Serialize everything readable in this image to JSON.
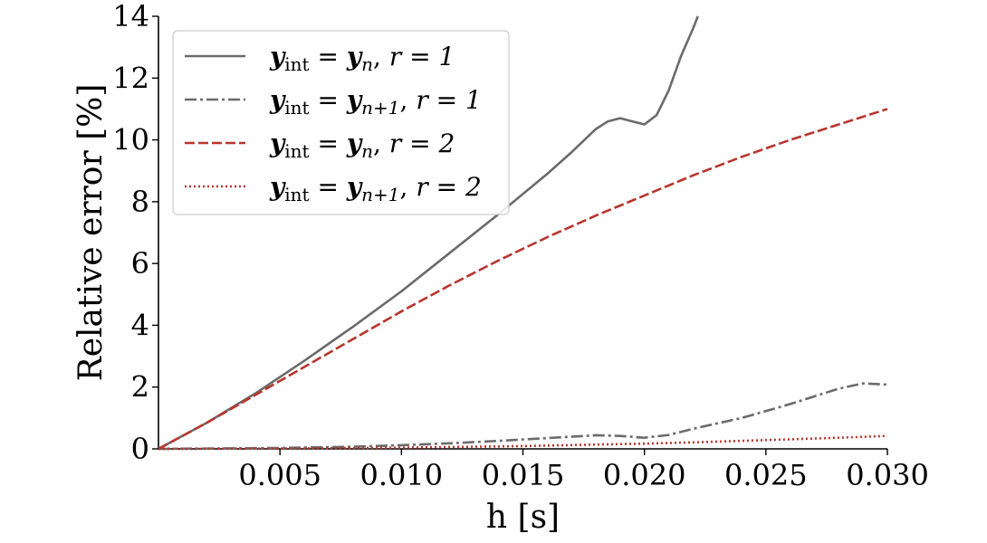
{
  "chart_data": {
    "type": "line",
    "title": "",
    "xlabel": "h [s]",
    "ylabel": "Relative error [%]",
    "xlim": [
      0.0,
      0.03
    ],
    "ylim": [
      0,
      14
    ],
    "xticks": [
      0.005,
      0.01,
      0.015,
      0.02,
      0.025,
      0.03
    ],
    "xtick_labels": [
      "0.005",
      "0.010",
      "0.015",
      "0.020",
      "0.025",
      "0.030"
    ],
    "yticks": [
      0,
      2,
      4,
      6,
      8,
      10,
      12,
      14
    ],
    "ytick_labels": [
      "0",
      "2",
      "4",
      "6",
      "8",
      "10",
      "12",
      "14"
    ],
    "grid": false,
    "legend_position": "top-left",
    "series": [
      {
        "name": "y_int = y_n, r = 1",
        "label_parts": {
          "lhs": "y",
          "lhs_sub": "int",
          "rhs": "y",
          "rhs_sub": "n",
          "r": "r = 1"
        },
        "color": "#6b6b6b",
        "dash": "solid",
        "x": [
          0.0,
          0.002,
          0.004,
          0.006,
          0.008,
          0.01,
          0.012,
          0.014,
          0.016,
          0.017,
          0.018,
          0.0185,
          0.019,
          0.0195,
          0.02,
          0.0205,
          0.021,
          0.0215,
          0.022,
          0.0222
        ],
        "y": [
          0.0,
          0.85,
          1.8,
          2.85,
          3.95,
          5.1,
          6.35,
          7.6,
          8.9,
          9.6,
          10.35,
          10.6,
          10.7,
          10.6,
          10.5,
          10.8,
          11.6,
          12.7,
          13.6,
          14.0
        ]
      },
      {
        "name": "y_int = y_n+1, r = 1",
        "label_parts": {
          "lhs": "y",
          "lhs_sub": "int",
          "rhs": "y",
          "rhs_sub": "n+1",
          "r": "r = 1"
        },
        "color": "#6b6b6b",
        "dash": "dashdot",
        "x": [
          0.0,
          0.005,
          0.008,
          0.01,
          0.012,
          0.014,
          0.016,
          0.018,
          0.019,
          0.02,
          0.021,
          0.022,
          0.024,
          0.026,
          0.028,
          0.029,
          0.03
        ],
        "y": [
          0.0,
          0.03,
          0.07,
          0.12,
          0.18,
          0.26,
          0.35,
          0.44,
          0.42,
          0.36,
          0.45,
          0.65,
          1.0,
          1.45,
          1.95,
          2.12,
          2.08
        ]
      },
      {
        "name": "y_int = y_n, r = 2",
        "label_parts": {
          "lhs": "y",
          "lhs_sub": "int",
          "rhs": "y",
          "rhs_sub": "n",
          "r": "r = 2"
        },
        "color": "#b8352d",
        "dash": "dashed",
        "x": [
          0.0,
          0.002,
          0.004,
          0.006,
          0.008,
          0.01,
          0.012,
          0.014,
          0.016,
          0.018,
          0.02,
          0.022,
          0.024,
          0.026,
          0.028,
          0.03
        ],
        "y": [
          0.0,
          0.85,
          1.75,
          2.65,
          3.55,
          4.45,
          5.3,
          6.1,
          6.85,
          7.55,
          8.2,
          8.85,
          9.45,
          10.0,
          10.5,
          11.0
        ]
      },
      {
        "name": "y_int = y_n+1, r = 2",
        "label_parts": {
          "lhs": "y",
          "lhs_sub": "int",
          "rhs": "y",
          "rhs_sub": "n+1",
          "r": "r = 2"
        },
        "color": "#b8352d",
        "dash": "dotted",
        "x": [
          0.0,
          0.005,
          0.01,
          0.015,
          0.018,
          0.02,
          0.022,
          0.024,
          0.026,
          0.028,
          0.03
        ],
        "y": [
          0.0,
          0.01,
          0.04,
          0.09,
          0.14,
          0.17,
          0.21,
          0.26,
          0.31,
          0.36,
          0.42
        ]
      }
    ]
  }
}
